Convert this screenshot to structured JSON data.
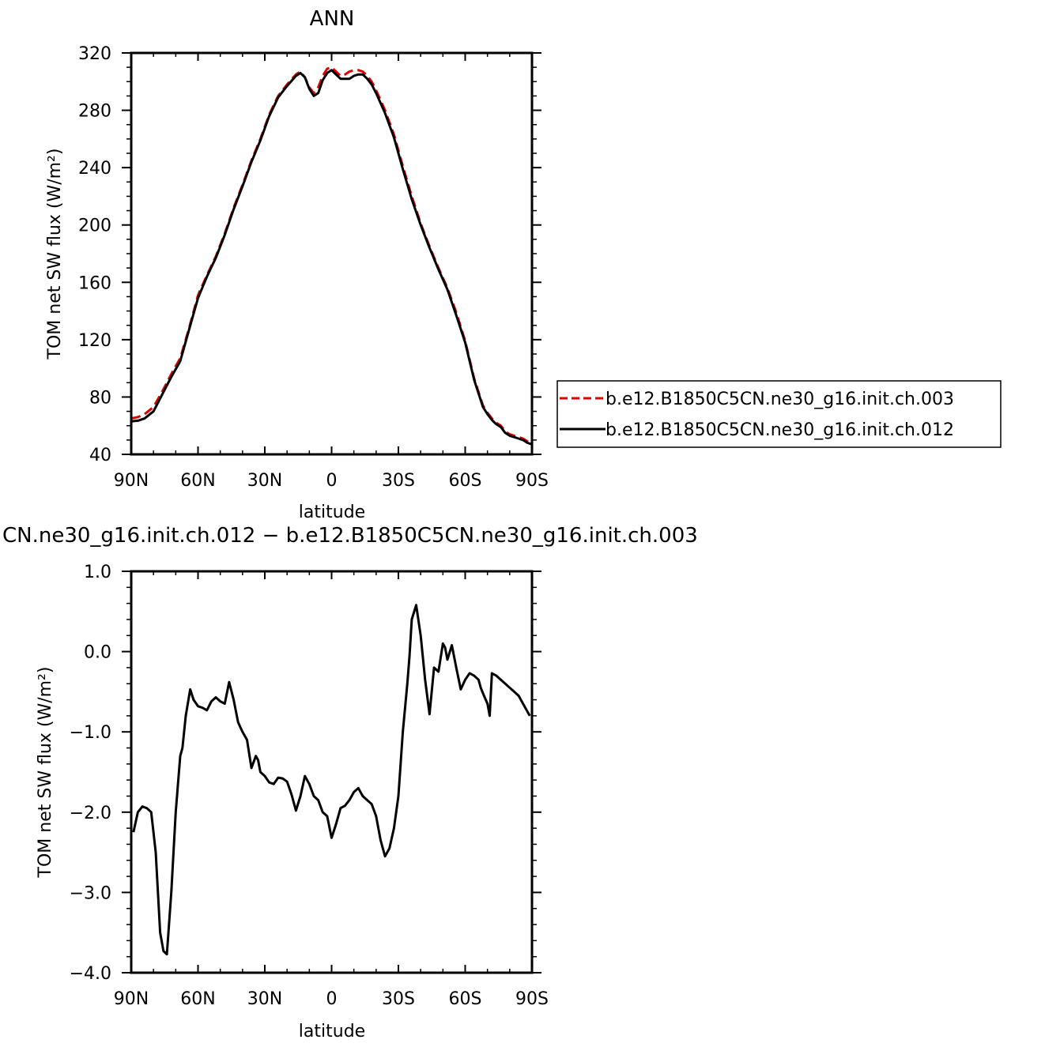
{
  "chart_data": [
    {
      "type": "line",
      "title": "ANN",
      "xlabel": "latitude",
      "ylabel": "TOM net SW flux (W/m²)",
      "xlim": [
        90,
        -90
      ],
      "ylim": [
        40,
        320
      ],
      "xticks": [
        90,
        60,
        30,
        0,
        -30,
        -60,
        -90
      ],
      "xtick_labels": [
        "90N",
        "60N",
        "30N",
        "0",
        "30S",
        "60S",
        "90S"
      ],
      "yticks": [
        40,
        80,
        120,
        160,
        200,
        240,
        280,
        320
      ],
      "ytick_labels": [
        "40",
        "80",
        "120",
        "160",
        "200",
        "240",
        "280",
        "320"
      ],
      "legend_position": "right",
      "series": [
        {
          "name": "b.e12.B1850C5CN.ne30_g16.init.ch.003",
          "color": "#e00000",
          "dash": "dashed",
          "x": [
            90,
            87,
            84,
            80,
            76,
            72,
            68,
            64,
            60,
            56,
            52,
            48,
            44,
            40,
            36,
            32,
            28,
            24,
            20,
            16,
            14,
            12,
            10,
            8,
            6,
            4,
            2,
            0,
            -2,
            -4,
            -6,
            -8,
            -10,
            -12,
            -14,
            -16,
            -18,
            -20,
            -24,
            -28,
            -32,
            -36,
            -40,
            -44,
            -48,
            -52,
            -56,
            -60,
            -64,
            -68,
            -70,
            -72,
            -74,
            -76,
            -78,
            -80,
            -82,
            -84,
            -86,
            -88,
            -90
          ],
          "y": [
            65,
            66,
            68,
            73,
            84,
            96,
            107,
            128,
            151,
            165,
            178,
            194,
            212,
            228,
            245,
            260,
            277,
            290,
            298,
            305,
            307,
            303,
            296,
            292,
            296,
            304,
            309,
            310,
            307,
            304,
            305,
            307,
            308,
            308,
            307,
            304,
            300,
            294,
            280,
            263,
            241,
            220,
            201,
            185,
            170,
            156,
            139,
            119,
            93,
            74,
            69,
            65,
            62,
            60,
            56,
            54,
            53,
            52,
            51,
            49,
            48
          ]
        },
        {
          "name": "b.e12.B1850C5CN.ne30_g16.init.ch.012",
          "color": "#000000",
          "dash": "solid",
          "x": [
            90,
            87,
            84,
            80,
            76,
            72,
            68,
            64,
            60,
            56,
            52,
            48,
            44,
            40,
            36,
            32,
            28,
            24,
            20,
            16,
            14,
            12,
            10,
            8,
            6,
            4,
            2,
            0,
            -2,
            -4,
            -6,
            -8,
            -10,
            -12,
            -14,
            -16,
            -18,
            -20,
            -24,
            -28,
            -32,
            -36,
            -40,
            -44,
            -48,
            -52,
            -56,
            -60,
            -64,
            -68,
            -70,
            -72,
            -74,
            -76,
            -78,
            -80,
            -82,
            -84,
            -86,
            -88,
            -90
          ],
          "y": [
            63,
            63.5,
            65,
            70,
            82,
            94,
            105,
            127,
            149,
            164,
            177,
            193,
            211,
            227,
            244,
            259,
            276,
            289,
            297,
            304,
            306,
            303,
            295,
            290,
            292,
            301,
            306,
            308,
            305,
            302,
            302,
            302,
            304,
            305,
            305,
            302,
            298,
            292,
            278,
            261,
            239,
            218,
            200,
            184,
            169,
            155,
            137,
            118,
            92,
            73,
            68,
            64,
            61,
            59,
            55,
            53,
            52,
            51,
            50,
            48,
            47
          ]
        }
      ]
    },
    {
      "type": "line",
      "title": "CN.ne30_g16.init.ch.012 − b.e12.B1850C5CN.ne30_g16.init.ch.003",
      "xlabel": "latitude",
      "ylabel": "TOM net SW flux (W/m²)",
      "xlim": [
        90,
        -90
      ],
      "ylim": [
        -4.0,
        1.0
      ],
      "xticks": [
        90,
        60,
        30,
        0,
        -30,
        -60,
        -90
      ],
      "xtick_labels": [
        "90N",
        "60N",
        "30N",
        "0",
        "30S",
        "60S",
        "90S"
      ],
      "yticks": [
        -4.0,
        -3.0,
        -2.0,
        -1.0,
        0.0,
        1.0
      ],
      "ytick_labels": [
        "−4.0",
        "−3.0",
        "−2.0",
        "−1.0",
        "0.0",
        "1.0"
      ],
      "series": [
        {
          "color": "#000000",
          "dash": "solid",
          "x": [
            89,
            87,
            85,
            83,
            81,
            79,
            77,
            75.5,
            74,
            72,
            70,
            68,
            67,
            65.5,
            63.5,
            62,
            60,
            58,
            56,
            54,
            52,
            50,
            48,
            46,
            44,
            42,
            40,
            38,
            36,
            34,
            33,
            32,
            30,
            28,
            26,
            24,
            22,
            20,
            18,
            16,
            14,
            12,
            10,
            8,
            6,
            4,
            2,
            0,
            -2,
            -4,
            -6,
            -8,
            -10,
            -12,
            -14,
            -16,
            -18,
            -20,
            -22,
            -24,
            -26,
            -28,
            -30,
            -32,
            -34,
            -35,
            -36,
            -38,
            -40,
            -42,
            -44,
            -46,
            -48,
            -50,
            -51,
            -52,
            -54,
            -56,
            -58,
            -60,
            -62,
            -64,
            -66,
            -67,
            -68,
            -70,
            -71,
            -72,
            -74,
            -76,
            -78,
            -80,
            -82,
            -84,
            -86,
            -88,
            -89
          ],
          "y": [
            -2.25,
            -2.0,
            -1.93,
            -1.95,
            -2.0,
            -2.5,
            -3.5,
            -3.73,
            -3.77,
            -3.0,
            -2.0,
            -1.3,
            -1.2,
            -0.8,
            -0.47,
            -0.6,
            -0.68,
            -0.7,
            -0.73,
            -0.62,
            -0.57,
            -0.62,
            -0.65,
            -0.38,
            -0.6,
            -0.88,
            -1.0,
            -1.1,
            -1.45,
            -1.3,
            -1.35,
            -1.5,
            -1.55,
            -1.63,
            -1.65,
            -1.57,
            -1.58,
            -1.62,
            -1.78,
            -1.98,
            -1.8,
            -1.55,
            -1.65,
            -1.8,
            -1.85,
            -2.0,
            -2.05,
            -2.32,
            -2.15,
            -1.95,
            -1.92,
            -1.85,
            -1.75,
            -1.7,
            -1.8,
            -1.85,
            -1.9,
            -2.05,
            -2.35,
            -2.55,
            -2.45,
            -2.2,
            -1.8,
            -1.0,
            -0.4,
            -0.05,
            0.4,
            0.58,
            0.2,
            -0.35,
            -0.78,
            -0.2,
            -0.25,
            0.1,
            0.05,
            -0.1,
            0.08,
            -0.2,
            -0.47,
            -0.35,
            -0.27,
            -0.3,
            -0.35,
            -0.45,
            -0.52,
            -0.65,
            -0.8,
            -0.27,
            -0.3,
            -0.35,
            -0.4,
            -0.45,
            -0.5,
            -0.55,
            -0.65,
            -0.75,
            -0.8
          ]
        }
      ]
    }
  ]
}
